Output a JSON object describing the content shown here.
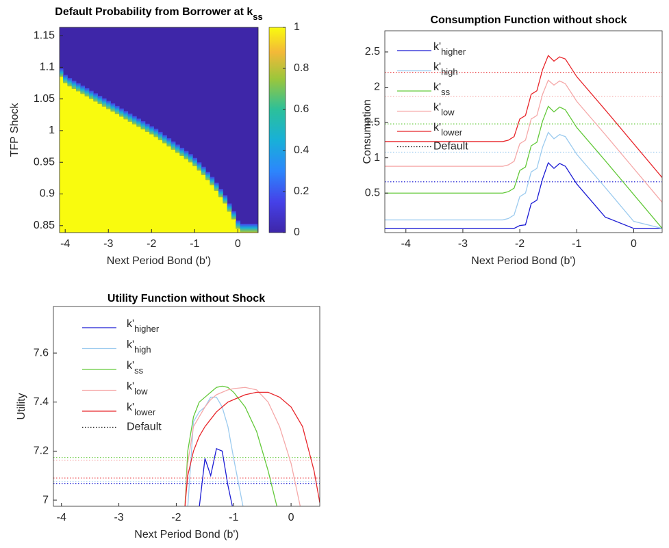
{
  "chart_data": [
    {
      "type": "heatmap",
      "title": "Default Probability from Borrower at k",
      "title_sub": "ss",
      "xlabel": "Next Period Bond (b')",
      "ylabel": "TFP Shock",
      "x": [
        -4.1,
        -4.0,
        -3.9,
        -3.8,
        -3.7,
        -3.6,
        -3.5,
        -3.4,
        -3.3,
        -3.2,
        -3.1,
        -3.0,
        -2.9,
        -2.8,
        -2.7,
        -2.6,
        -2.5,
        -2.4,
        -2.3,
        -2.2,
        -2.1,
        -2.0,
        -1.9,
        -1.8,
        -1.7,
        -1.6,
        -1.5,
        -1.4,
        -1.3,
        -1.2,
        -1.1,
        -1.0,
        -0.9,
        -0.8,
        -0.7,
        -0.6,
        -0.5,
        -0.4,
        -0.3,
        -0.2,
        -0.1,
        0.0,
        0.1,
        0.2,
        0.3,
        0.4
      ],
      "values": [
        1.085,
        1.075,
        1.07,
        1.066,
        1.062,
        1.058,
        1.054,
        1.05,
        1.046,
        1.042,
        1.038,
        1.034,
        1.03,
        1.026,
        1.022,
        1.018,
        1.014,
        1.01,
        1.006,
        1.002,
        0.998,
        0.994,
        0.99,
        0.985,
        0.98,
        0.975,
        0.97,
        0.965,
        0.96,
        0.955,
        0.95,
        0.944,
        0.937,
        0.93,
        0.922,
        0.914,
        0.905,
        0.895,
        0.885,
        0.872,
        0.86,
        0.845,
        0.84,
        0.84,
        0.84,
        0.84
      ],
      "color_high": "#f9fb0e",
      "color_low": "#3e26a8",
      "xlim": [
        -4.13,
        0.47
      ],
      "xticks": [
        -4,
        -3,
        -2,
        -1,
        0
      ],
      "ylim": [
        0.839,
        1.163
      ],
      "yticks": [
        0.85,
        0.9,
        0.95,
        1,
        1.05,
        1.1,
        1.15
      ],
      "clim": [
        0,
        1
      ],
      "cticks": [
        0,
        0.2,
        0.4,
        0.6,
        0.8,
        1
      ]
    },
    {
      "type": "line",
      "title": "Consumption Function without shock",
      "xlabel": "Next Period Bond (b')",
      "ylabel": "Consumption",
      "default_label": "Default",
      "x": [
        -4.37,
        -2.5,
        -2.3,
        -2.2,
        -2.1,
        -2.0,
        -1.9,
        -1.8,
        -1.7,
        -1.6,
        -1.5,
        -1.4,
        -1.3,
        -1.2,
        -1.0,
        -0.5,
        0,
        0.5
      ],
      "series": [
        {
          "name": "k'",
          "name_sub": "higher",
          "color": "#1c1cd4",
          "default": 0.66,
          "values": [
            0,
            0,
            0,
            0,
            0,
            0.04,
            0.05,
            0.35,
            0.4,
            0.7,
            0.93,
            0.85,
            0.92,
            0.88,
            0.63,
            0.16,
            0,
            0
          ]
        },
        {
          "name": "k'",
          "name_sub": "high",
          "color": "#9ccbef",
          "default": 1.08,
          "values": [
            0.12,
            0.12,
            0.12,
            0.14,
            0.19,
            0.45,
            0.5,
            0.8,
            0.85,
            1.15,
            1.36,
            1.27,
            1.33,
            1.3,
            1.05,
            0.58,
            0.1,
            0
          ]
        },
        {
          "name": "k'",
          "name_sub": "ss",
          "color": "#63c93a",
          "default": 1.48,
          "values": [
            0.5,
            0.5,
            0.5,
            0.52,
            0.57,
            0.82,
            0.87,
            1.17,
            1.22,
            1.52,
            1.73,
            1.65,
            1.72,
            1.68,
            1.43,
            0.96,
            0.48,
            0
          ]
        },
        {
          "name": "k'",
          "name_sub": "low",
          "color": "#f5a8a8",
          "default": 1.87,
          "values": [
            0.88,
            0.88,
            0.88,
            0.9,
            0.95,
            1.2,
            1.25,
            1.55,
            1.6,
            1.9,
            2.1,
            2.03,
            2.09,
            2.05,
            1.8,
            1.33,
            0.85,
            0.37
          ]
        },
        {
          "name": "k'",
          "name_sub": "lower",
          "color": "#e8262b",
          "default": 2.21,
          "values": [
            1.23,
            1.23,
            1.23,
            1.25,
            1.3,
            1.55,
            1.6,
            1.9,
            1.95,
            2.25,
            2.45,
            2.37,
            2.43,
            2.4,
            2.15,
            1.68,
            1.2,
            0.72
          ]
        }
      ],
      "xlim": [
        -4.37,
        0.5
      ],
      "xticks": [
        -4,
        -3,
        -2,
        -1,
        0
      ],
      "ylim": [
        -0.06,
        2.8
      ],
      "yticks": [
        0.5,
        1,
        1.5,
        2,
        2.5
      ]
    },
    {
      "type": "line",
      "title": "Utility Function without Shock",
      "xlabel": "Next Period Bond (b')",
      "ylabel": "Utility",
      "default_label": "Default",
      "x": [
        -1.85,
        -1.8,
        -1.7,
        -1.6,
        -1.5,
        -1.4,
        -1.3,
        -1.2,
        -1.1,
        -1.0,
        -0.8,
        -0.6,
        -0.4,
        -0.2,
        0,
        0.2,
        0.4,
        0.5
      ],
      "series": [
        {
          "name": "k'",
          "name_sub": "higher",
          "color": "#1c1cd4",
          "default": 7.068,
          "values": [
            null,
            null,
            null,
            6.97,
            7.17,
            7.1,
            7.21,
            7.2,
            7.06,
            6.95,
            null,
            null,
            null,
            null,
            null,
            null,
            null,
            null
          ]
        },
        {
          "name": "k'",
          "name_sub": "high",
          "color": "#9ccbef",
          "default": 7.076,
          "values": [
            null,
            6.97,
            7.32,
            7.36,
            7.38,
            7.42,
            7.42,
            7.38,
            7.3,
            7.17,
            6.93,
            null,
            null,
            null,
            null,
            null,
            null,
            null
          ]
        },
        {
          "name": "k'",
          "name_sub": "ss",
          "color": "#63c93a",
          "default": 7.174,
          "values": [
            6.97,
            7.2,
            7.34,
            7.4,
            7.42,
            7.44,
            7.46,
            7.465,
            7.46,
            7.44,
            7.38,
            7.28,
            7.12,
            6.93,
            null,
            null,
            null,
            null
          ]
        },
        {
          "name": "k'",
          "name_sub": "low",
          "color": "#f5a8a8",
          "default": 7.163,
          "values": [
            6.97,
            7.15,
            7.3,
            7.34,
            7.38,
            7.41,
            7.43,
            7.44,
            7.45,
            7.455,
            7.46,
            7.45,
            7.4,
            7.3,
            7.15,
            6.93,
            null,
            null
          ]
        },
        {
          "name": "k'",
          "name_sub": "lower",
          "color": "#e8262b",
          "default": 7.09,
          "values": [
            6.97,
            7.1,
            7.2,
            7.26,
            7.3,
            7.33,
            7.36,
            7.38,
            7.4,
            7.41,
            7.43,
            7.44,
            7.44,
            7.42,
            7.38,
            7.3,
            7.12,
            6.99
          ]
        }
      ],
      "xlim": [
        -4.14,
        0.5
      ],
      "xticks": [
        -4,
        -3,
        -2,
        -1,
        0
      ],
      "ylim": [
        6.975,
        7.79
      ],
      "yticks": [
        7,
        7.2,
        7.4,
        7.6
      ]
    }
  ]
}
